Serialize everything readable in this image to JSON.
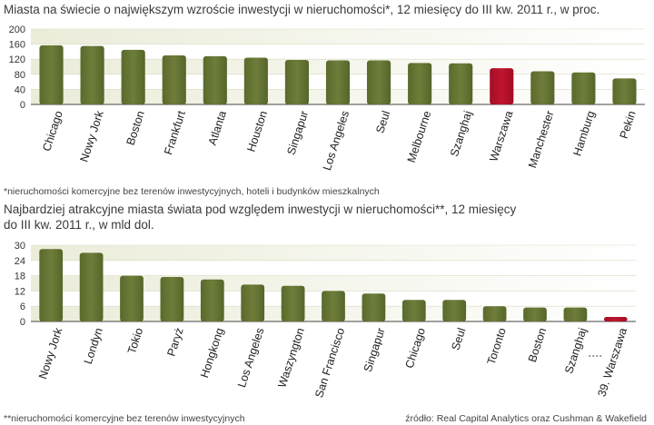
{
  "charts": [
    {
      "type": "bar",
      "title": "Miasta na świecie o największym wzroście inwestycji w nieruchomości*, 12 miesięcy do III kw. 2011 r., w proc.",
      "footnote": "*nieruchomości komercyjne bez terenów inwestycyjnych, hoteli i budynków mieszkalnych",
      "categories": [
        "Chicago",
        "Nowy Jork",
        "Boston",
        "Frankfurt",
        "Atlanta",
        "Houston",
        "Singapur",
        "Los Angeles",
        "Seul",
        "Melbourne",
        "Szanghaj",
        "Warszawa",
        "Manchester",
        "Hamburg",
        "Pekin"
      ],
      "values": [
        157,
        155,
        145,
        130,
        128,
        124,
        118,
        117,
        117,
        110,
        109,
        96,
        88,
        85,
        69
      ],
      "highlight": "Warszawa",
      "yticks": [
        0,
        40,
        80,
        120,
        160,
        200
      ],
      "ylim": [
        0,
        200
      ],
      "colors": {
        "bar": "#6e7d3a",
        "highlight": "#c0152f",
        "band": "#ebecd9"
      }
    },
    {
      "type": "bar",
      "title": "Najbardziej atrakcyjne miasta świata pod względem inwestycji w nieruchomości**, 12 miesięcy do III kw. 2011 r., w mld dol.",
      "title_lines": [
        "Najbardziej atrakcyjne miasta świata pod względem inwestycji w nieruchomości**, 12 miesięcy",
        "do III kw. 2011 r., w mld dol."
      ],
      "footnote": "**nieruchomości komercyjne bez terenów inwestycyjnych",
      "source": "źródło: Real Capital Analytics oraz Cushman & Wakefield",
      "categories": [
        "Nowy Jork",
        "Londyn",
        "Tokio",
        "Paryż",
        "Hongkong",
        "Los Angeles",
        "Waszyngton",
        "San Francisco",
        "Singapur",
        "Chicago",
        "Seul",
        "Toronto",
        "Boston",
        "Szanghaj",
        "39. Warszawa"
      ],
      "values": [
        28.5,
        27,
        18,
        17.5,
        16.5,
        14.5,
        14,
        12,
        11,
        8.5,
        8.5,
        6,
        5.5,
        5.5,
        1.8
      ],
      "highlight": "39. Warszawa",
      "yticks": [
        0,
        6,
        12,
        18,
        24,
        30
      ],
      "ylim": [
        0,
        30
      ],
      "colors": {
        "bar": "#6e7d3a",
        "highlight": "#c0152f",
        "band": "#ebecd9"
      }
    }
  ]
}
